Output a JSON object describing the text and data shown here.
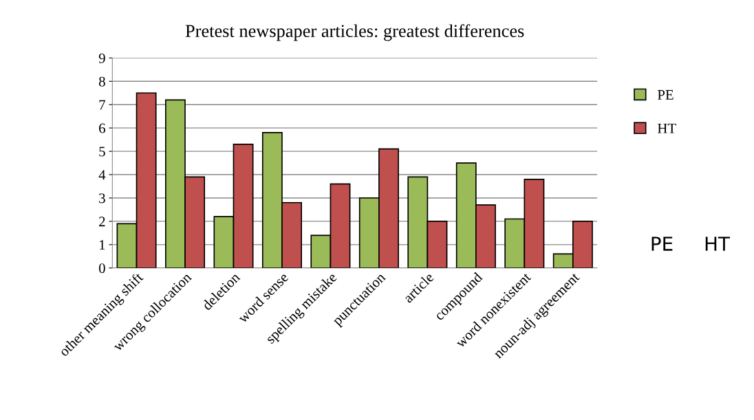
{
  "chart_data": {
    "type": "bar",
    "title": "Pretest newspaper articles: greatest differences",
    "categories": [
      "other meaning shift",
      "wrong collocation",
      "deletion",
      "word sense",
      "spelling mistake",
      "punctuation",
      "article",
      "compound",
      "word nonexistent",
      "noun-adj agreement"
    ],
    "series": [
      {
        "name": "PE",
        "color": "#9bbb59",
        "values": [
          1.9,
          7.2,
          2.2,
          5.8,
          1.4,
          3.0,
          3.9,
          4.5,
          2.1,
          0.6
        ]
      },
      {
        "name": "HT",
        "color": "#c0504d",
        "values": [
          7.5,
          3.9,
          5.3,
          2.8,
          3.6,
          5.1,
          2.0,
          2.7,
          3.8,
          2.0
        ]
      }
    ],
    "ylim": [
      0,
      9
    ],
    "yticks": [
      0,
      1,
      2,
      3,
      4,
      5,
      6,
      7,
      8,
      9
    ],
    "grid": "y",
    "legend": "right",
    "annotations": [
      "PE",
      "HT"
    ]
  }
}
